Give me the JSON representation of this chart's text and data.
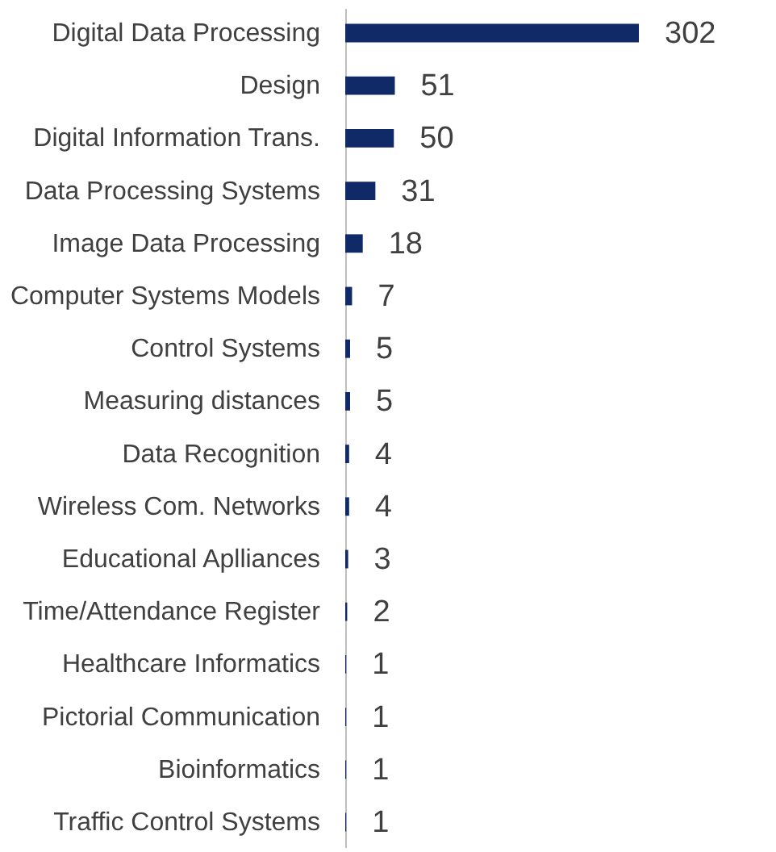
{
  "chart_data": {
    "type": "bar",
    "orientation": "horizontal",
    "data_labels": true,
    "grid": false,
    "tick_labels": "y",
    "categories": [
      "Digital Data Processing",
      "Design",
      "Digital Information Trans.",
      "Data Processing Systems",
      "Image Data Processing",
      "Computer Systems Models",
      "Control Systems",
      "Measuring distances",
      "Data Recognition",
      "Wireless Com. Networks",
      "Educational Aplliances",
      "Time/Attendance Register",
      "Healthcare Informatics",
      "Pictorial Communication",
      "Bioinformatics",
      "Traffic Control Systems"
    ],
    "values": [
      302,
      51,
      50,
      31,
      18,
      7,
      5,
      5,
      4,
      4,
      3,
      2,
      1,
      1,
      1,
      1
    ],
    "color": "#0f2a66"
  }
}
